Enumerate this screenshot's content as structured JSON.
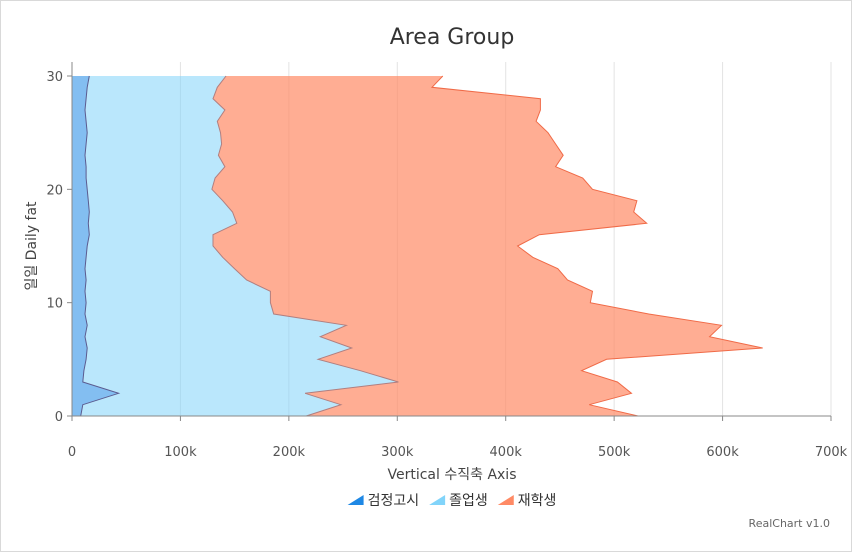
{
  "chart_data": {
    "type": "area",
    "orientation": "inverted",
    "title": "Area Group",
    "xlabel": "Vertical 수직축 Axis",
    "ylabel": "일일 Daily fat",
    "value_axis": {
      "min": 0,
      "max": 700000,
      "ticks": [
        "0",
        "100k",
        "200k",
        "300k",
        "400k",
        "500k",
        "600k",
        "700k"
      ],
      "tick_values": [
        0,
        100000,
        200000,
        300000,
        400000,
        500000,
        600000,
        700000
      ]
    },
    "category_axis": {
      "min": 0,
      "max": 30,
      "ticks": [
        "0",
        "10",
        "20",
        "30"
      ],
      "tick_values": [
        0,
        10,
        20,
        30
      ]
    },
    "grid": true,
    "stacked": true,
    "legend_position": "bottom",
    "x": [
      0,
      1,
      2,
      3,
      4,
      5,
      6,
      7,
      8,
      9,
      10,
      11,
      12,
      13,
      14,
      15,
      16,
      17,
      18,
      19,
      20,
      21,
      22,
      23,
      24,
      25,
      26,
      27,
      28,
      29,
      30
    ],
    "series": [
      {
        "name": "검정고시",
        "color": "#1e88e5",
        "values": [
          8000,
          10000,
          43000,
          10000,
          11000,
          13000,
          14000,
          12000,
          14000,
          12000,
          13000,
          12000,
          13000,
          12000,
          13000,
          14000,
          16000,
          15000,
          16000,
          15000,
          14000,
          13000,
          13000,
          12000,
          13000,
          14000,
          13000,
          12000,
          13000,
          14000,
          16000
        ]
      },
      {
        "name": "졸업생",
        "color": "#81d4fa",
        "values": [
          208000,
          238000,
          172000,
          291000,
          255000,
          214000,
          244000,
          217000,
          239000,
          174000,
          170000,
          171000,
          148000,
          138000,
          126000,
          116000,
          114000,
          137000,
          132000,
          124000,
          115000,
          119000,
          128000,
          123000,
          125000,
          123000,
          121000,
          129000,
          117000,
          120000,
          126000
        ]
      },
      {
        "name": "재학생",
        "color": "#ff8a65",
        "values": [
          306000,
          229000,
          301000,
          202000,
          204000,
          266000,
          379000,
          359000,
          346000,
          346000,
          295000,
          297000,
          296000,
          298000,
          286000,
          281000,
          301000,
          378000,
          370000,
          382000,
          351000,
          339000,
          305000,
          318000,
          308000,
          302000,
          294000,
          291000,
          302000,
          198000,
          200000
        ]
      }
    ]
  },
  "legend": {
    "items": [
      "검정고시",
      "졸업생",
      "재학생"
    ]
  },
  "credit": "RealChart v1.0"
}
